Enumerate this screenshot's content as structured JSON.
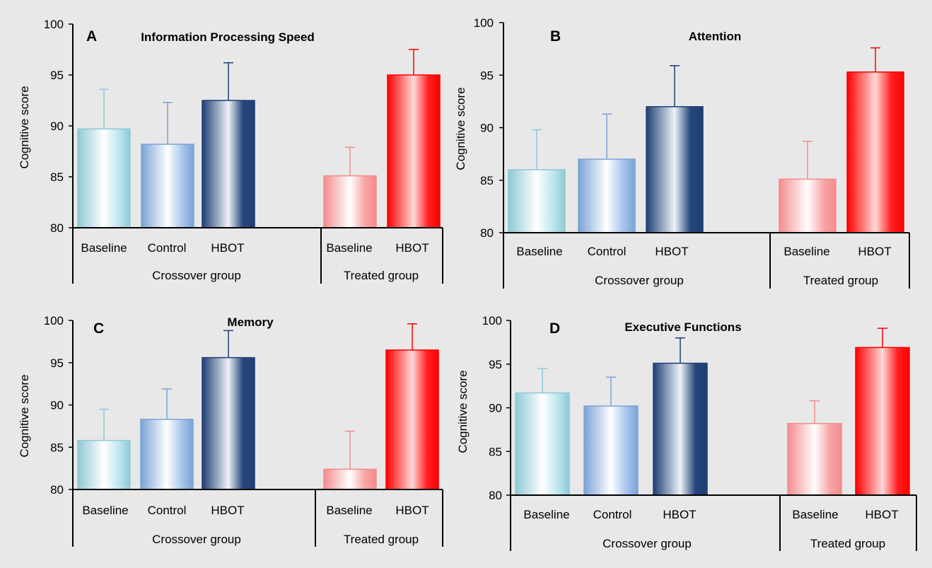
{
  "chart_data": [
    {
      "type": "bar",
      "panel": "A",
      "title": "Information Processing Speed",
      "ylabel": "Cognitive score",
      "ylim": [
        80,
        100
      ],
      "yticks": [
        80,
        85,
        90,
        95,
        100
      ],
      "categories": [
        "Baseline",
        "Control",
        "HBOT",
        "Baseline",
        "HBOT"
      ],
      "groups": [
        {
          "label": "Crossover group",
          "categories": [
            0,
            1,
            2
          ]
        },
        {
          "label": "Treated group",
          "categories": [
            3,
            4
          ]
        }
      ],
      "values": [
        89.7,
        88.2,
        92.5,
        85.1,
        95.0
      ],
      "errors": [
        3.9,
        4.1,
        3.7,
        2.8,
        2.5
      ]
    },
    {
      "type": "bar",
      "panel": "B",
      "title": "Attention",
      "ylabel": "Cognitive score",
      "ylim": [
        80,
        100
      ],
      "yticks": [
        80,
        85,
        90,
        95,
        100
      ],
      "categories": [
        "Baseline",
        "Control",
        "HBOT",
        "Baseline",
        "HBOT"
      ],
      "groups": [
        {
          "label": "Crossover group",
          "categories": [
            0,
            1,
            2
          ]
        },
        {
          "label": "Treated group",
          "categories": [
            3,
            4
          ]
        }
      ],
      "values": [
        86.0,
        87.0,
        92.0,
        85.1,
        95.3
      ],
      "errors": [
        3.8,
        4.3,
        3.9,
        3.6,
        2.3
      ]
    },
    {
      "type": "bar",
      "panel": "C",
      "title": "Memory",
      "ylabel": "Cognitive score",
      "ylim": [
        80,
        100
      ],
      "yticks": [
        80,
        85,
        90,
        95,
        100
      ],
      "categories": [
        "Baseline",
        "Control",
        "HBOT",
        "Baseline",
        "HBOT"
      ],
      "groups": [
        {
          "label": "Crossover group",
          "categories": [
            0,
            1,
            2
          ]
        },
        {
          "label": "Treated group",
          "categories": [
            3,
            4
          ]
        }
      ],
      "values": [
        85.8,
        88.3,
        95.6,
        82.4,
        96.5
      ],
      "errors": [
        3.7,
        3.6,
        3.2,
        4.5,
        3.1
      ]
    },
    {
      "type": "bar",
      "panel": "D",
      "title": "Executive Functions",
      "ylabel": "Cognitive score",
      "ylim": [
        80,
        100
      ],
      "yticks": [
        80,
        85,
        90,
        95,
        100
      ],
      "categories": [
        "Baseline",
        "Control",
        "HBOT",
        "Baseline",
        "HBOT"
      ],
      "groups": [
        {
          "label": "Crossover group",
          "categories": [
            0,
            1,
            2
          ]
        },
        {
          "label": "Treated group",
          "categories": [
            3,
            4
          ]
        }
      ],
      "values": [
        91.7,
        90.2,
        95.1,
        88.2,
        96.9
      ],
      "errors": [
        2.8,
        3.3,
        2.9,
        2.6,
        2.2
      ]
    }
  ],
  "bar_colors": [
    {
      "edge": "#8fc9d6",
      "light": "#ffffff",
      "mid": "#bfe7ef"
    },
    {
      "edge": "#7ba3d6",
      "light": "#ffffff",
      "mid": "#a9c6ec"
    },
    {
      "edge": "#1f3f74",
      "light": "#eef2f7",
      "mid": "#25467c"
    },
    {
      "edge": "#f48c8c",
      "light": "#ffffff",
      "mid": "#f7a6a6"
    },
    {
      "edge": "#ff0000",
      "light": "#ffd8d8",
      "mid": "#ff2020"
    }
  ]
}
